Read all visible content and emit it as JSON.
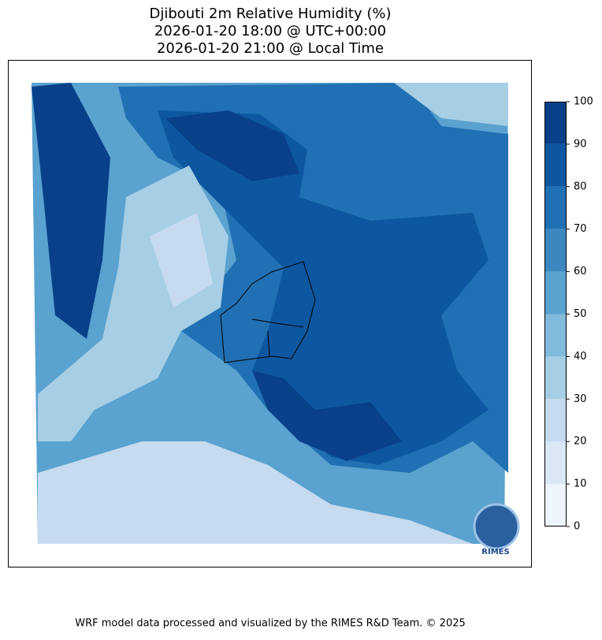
{
  "title": [
    "Djibouti 2m Relative Humidity (%)",
    "2026-01-20 18:00 @ UTC+00:00",
    "2026-01-20 21:00 @ Local Time"
  ],
  "colorbar": {
    "lim": [
      0,
      100
    ],
    "ticks": [
      0,
      10,
      20,
      30,
      40,
      50,
      60,
      70,
      80,
      90,
      100
    ],
    "colors": [
      "#eef5fc",
      "#dae8f6",
      "#c6dbef",
      "#a6cee4",
      "#82badb",
      "#5aa2cf",
      "#3b87c0",
      "#2170b4",
      "#0d57a1",
      "#08418a"
    ]
  },
  "logo": "RIMES",
  "footer": "WRF model data processed and visualized by the RIMES R&D Team. © 2025"
}
